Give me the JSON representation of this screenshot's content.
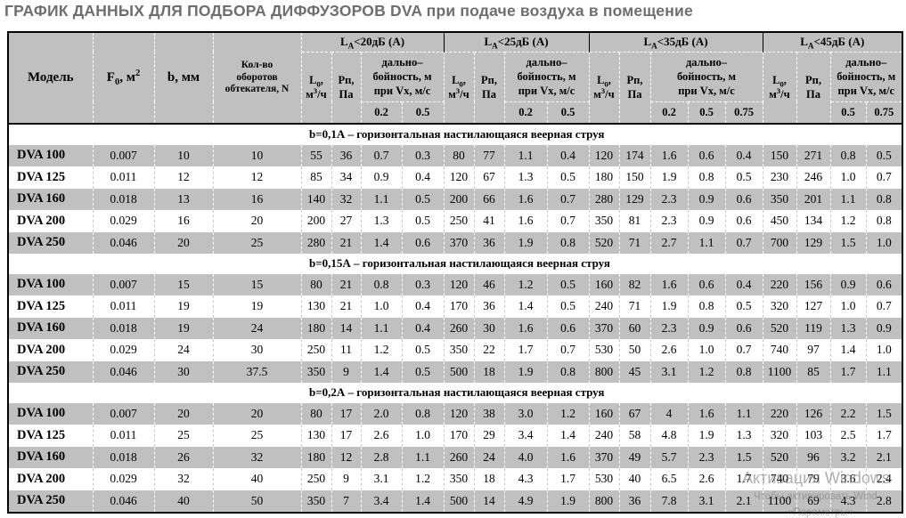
{
  "title": "ГРАФИК ДАННЫХ ДЛЯ ПОДБОРА ДИФФУЗОРОВ DVA при подаче воздуха в помещение",
  "table": {
    "fixed_headers": {
      "model": "Модель",
      "f0": {
        "base": "F",
        "sub": "0",
        "after": ", м",
        "sup": "2"
      },
      "b": "b, мм",
      "n_lines": [
        "Кол-во",
        "оборотов",
        "обтекателя, N"
      ]
    },
    "group_subheaders": {
      "flow": {
        "base": "L",
        "sub": "0",
        "after": ",",
        "line2": "м",
        "line2_sup": "3",
        "line2_after": "/ч"
      },
      "pressure_lines": [
        "Рп,",
        "Па"
      ],
      "throw_lines": [
        "дально–",
        "бойность, м",
        "при Vх, м/с"
      ]
    },
    "groups": [
      {
        "la_base": "L",
        "la_sub": "A",
        "la_after": "<20дБ (А)",
        "velocities": [
          "0.2",
          "0.5"
        ]
      },
      {
        "la_base": "L",
        "la_sub": "A",
        "la_after": "<25дБ (А)",
        "velocities": [
          "0.2",
          "0.5"
        ]
      },
      {
        "la_base": "L",
        "la_sub": "A",
        "la_after": "<35дБ (А)",
        "velocities": [
          "0.2",
          "0.5",
          "0.75"
        ]
      },
      {
        "la_base": "L",
        "la_sub": "A",
        "la_after": "<45дБ (А)",
        "velocities": [
          "0.5",
          "0.75"
        ]
      }
    ],
    "sections": [
      {
        "band": "b=0,1А  – горизонтальная настилающаяся веерная струя",
        "rows": [
          [
            "DVA 100",
            "0.007",
            "10",
            "10",
            "55",
            "36",
            "0.7",
            "0.3",
            "80",
            "77",
            "1.1",
            "0.4",
            "120",
            "174",
            "1.6",
            "0.6",
            "0.4",
            "150",
            "271",
            "0.8",
            "0.5"
          ],
          [
            "DVA 125",
            "0.011",
            "12",
            "12",
            "85",
            "34",
            "0.9",
            "0.4",
            "120",
            "67",
            "1.3",
            "0.5",
            "180",
            "150",
            "1.9",
            "0.8",
            "0.5",
            "230",
            "246",
            "1.0",
            "0.7"
          ],
          [
            "DVA 160",
            "0.018",
            "13",
            "16",
            "140",
            "32",
            "1.1",
            "0.5",
            "200",
            "66",
            "1.6",
            "0.7",
            "280",
            "129",
            "2.3",
            "0.9",
            "0.6",
            "350",
            "201",
            "1.1",
            "0.8"
          ],
          [
            "DVA 200",
            "0.029",
            "16",
            "20",
            "200",
            "27",
            "1.3",
            "0.5",
            "250",
            "41",
            "1.6",
            "0.7",
            "350",
            "81",
            "2.3",
            "0.9",
            "0.6",
            "450",
            "134",
            "1.2",
            "0.8"
          ],
          [
            "DVA 250",
            "0.046",
            "20",
            "25",
            "280",
            "21",
            "1.4",
            "0.6",
            "370",
            "36",
            "1.9",
            "0.8",
            "520",
            "71",
            "2.7",
            "1.1",
            "0.7",
            "700",
            "129",
            "1.5",
            "1.0"
          ]
        ]
      },
      {
        "band": "b=0,15А  – горизонтальная настилающаяся веерная струя",
        "rows": [
          [
            "DVA 100",
            "0.007",
            "15",
            "15",
            "80",
            "21",
            "0.8",
            "0.3",
            "120",
            "46",
            "1.2",
            "0.5",
            "160",
            "82",
            "1.6",
            "0.6",
            "0.4",
            "220",
            "156",
            "0.9",
            "0.6"
          ],
          [
            "DVA 125",
            "0.011",
            "19",
            "19",
            "130",
            "21",
            "1.0",
            "0.4",
            "170",
            "36",
            "1.4",
            "0.5",
            "240",
            "71",
            "1.9",
            "0.8",
            "0.5",
            "320",
            "127",
            "1.0",
            "0.7"
          ],
          [
            "DVA 160",
            "0.018",
            "19",
            "24",
            "180",
            "14",
            "1.1",
            "0.4",
            "260",
            "30",
            "1.6",
            "0.6",
            "370",
            "60",
            "2.3",
            "0.9",
            "0.6",
            "520",
            "119",
            "1.3",
            "0.9"
          ],
          [
            "DVA 200",
            "0.029",
            "24",
            "30",
            "250",
            "11",
            "1.2",
            "0.5",
            "350",
            "22",
            "1.7",
            "0.7",
            "530",
            "50",
            "2.6",
            "1.0",
            "0.7",
            "740",
            "97",
            "1.4",
            "1.0"
          ],
          [
            "DVA 250",
            "0.046",
            "30",
            "37.5",
            "350",
            "9",
            "1.4",
            "0.5",
            "500",
            "18",
            "1.9",
            "0.8",
            "800",
            "45",
            "3.1",
            "1.2",
            "0.8",
            "1100",
            "85",
            "1.7",
            "1.1"
          ]
        ]
      },
      {
        "band": "b=0,2А  – горизонтальная настилающаяся веерная струя",
        "rows": [
          [
            "DVA 100",
            "0.007",
            "20",
            "20",
            "80",
            "17",
            "2.0",
            "0.8",
            "120",
            "38",
            "3.0",
            "1.2",
            "160",
            "67",
            "4",
            "1.6",
            "1.1",
            "220",
            "126",
            "2.2",
            "1.5"
          ],
          [
            "DVA 125",
            "0.011",
            "25",
            "25",
            "130",
            "17",
            "2.6",
            "1.0",
            "170",
            "29",
            "3.4",
            "1.4",
            "240",
            "58",
            "4.8",
            "1.9",
            "1.3",
            "320",
            "103",
            "2.5",
            "1.7"
          ],
          [
            "DVA 160",
            "0.018",
            "26",
            "32",
            "180",
            "12",
            "2.8",
            "1.1",
            "260",
            "24",
            "4.0",
            "1.6",
            "370",
            "49",
            "5.7",
            "2.3",
            "1.5",
            "520",
            "96",
            "3.2",
            "2.1"
          ],
          [
            "DVA 200",
            "0.029",
            "32",
            "40",
            "250",
            "9",
            "3.1",
            "1.2",
            "350",
            "18",
            "4.3",
            "1.7",
            "530",
            "40",
            "6.5",
            "2.6",
            "1.7",
            "740",
            "79",
            "3.6",
            "2.4"
          ],
          [
            "DVA 250",
            "0.046",
            "40",
            "50",
            "350",
            "7",
            "3.4",
            "1.4",
            "500",
            "14",
            "4.9",
            "1.9",
            "800",
            "36",
            "7.8",
            "3.1",
            "2.1",
            "1100",
            "69",
            "4.3",
            "2.8"
          ]
        ]
      }
    ]
  },
  "watermark": {
    "line1": "Активация Windows",
    "line2": "Чтобы активировать Wind",
    "line3": "«Параметры»"
  }
}
